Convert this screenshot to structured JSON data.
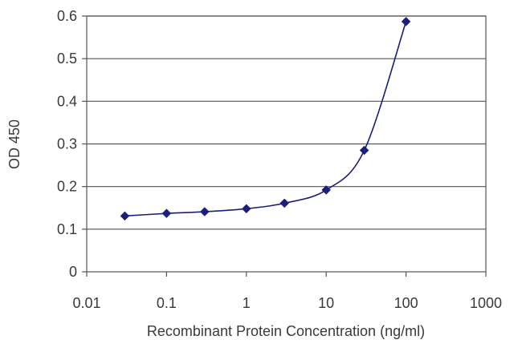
{
  "chart_data": {
    "type": "line",
    "title": "",
    "xlabel": "Recombinant Protein Concentration (ng/ml)",
    "ylabel": "OD 450",
    "x_scale": "log",
    "xlim": [
      0.01,
      1000
    ],
    "ylim": [
      0,
      0.6
    ],
    "x_ticks": [
      "0.01",
      "0.1",
      "1",
      "10",
      "100",
      "1000"
    ],
    "y_ticks": [
      "0",
      "0.1",
      "0.2",
      "0.3",
      "0.4",
      "0.5",
      "0.6"
    ],
    "grid": "horizontal",
    "legend": "none",
    "series": [
      {
        "color": "#1b1f7a",
        "marker": "diamond",
        "x": [
          0.03,
          0.1,
          0.3,
          1,
          3,
          10,
          30,
          100
        ],
        "y": [
          0.131,
          0.137,
          0.141,
          0.148,
          0.161,
          0.192,
          0.285,
          0.587
        ]
      }
    ]
  }
}
